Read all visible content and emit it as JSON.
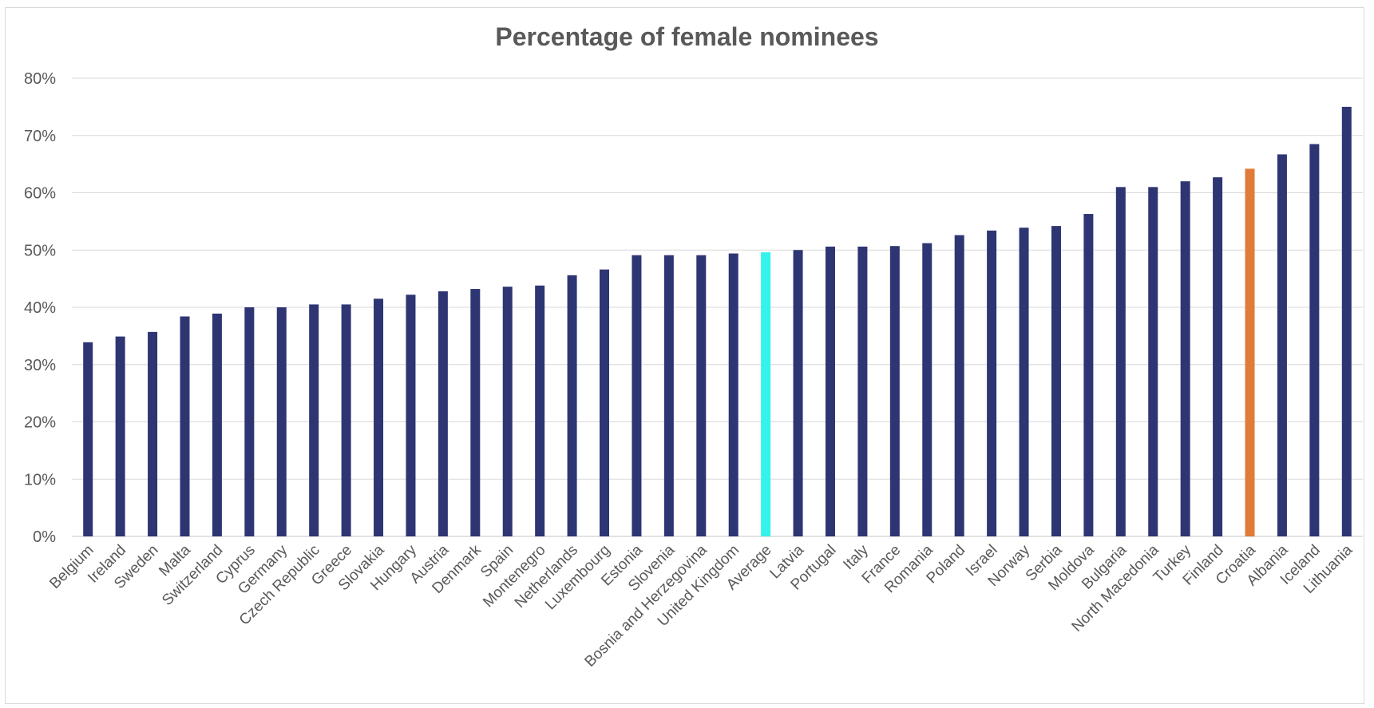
{
  "chart_data": {
    "type": "bar",
    "title": "Percentage of female nominees",
    "xlabel": "",
    "ylabel": "",
    "ylim": [
      0,
      80
    ],
    "yticks": [
      "0%",
      "10%",
      "20%",
      "30%",
      "40%",
      "50%",
      "60%",
      "70%",
      "80%"
    ],
    "grid": true,
    "legend": "none",
    "categories": [
      "Belgium",
      "Ireland",
      "Sweden",
      "Malta",
      "Switzerland",
      "Cyprus",
      "Germany",
      "Czech Republic",
      "Greece",
      "Slovakia",
      "Hungary",
      "Austria",
      "Denmark",
      "Spain",
      "Montenegro",
      "Netherlands",
      "Luxembourg",
      "Estonia",
      "Slovenia",
      "Bosnia and Herzegovina",
      "United Kingdom",
      "Average",
      "Latvia",
      "Portugal",
      "Italy",
      "France",
      "Romania",
      "Poland",
      "Israel",
      "Norway",
      "Serbia",
      "Moldova",
      "Bulgaria",
      "North Macedonia",
      "Turkey",
      "Finland",
      "Croatia",
      "Albania",
      "Iceland",
      "Lithuania"
    ],
    "values": [
      33.9,
      34.9,
      35.7,
      38.4,
      38.9,
      40.0,
      40.0,
      40.5,
      40.5,
      41.5,
      42.2,
      42.8,
      43.2,
      43.6,
      43.8,
      45.6,
      46.6,
      49.1,
      49.1,
      49.1,
      49.4,
      49.6,
      50.0,
      50.6,
      50.6,
      50.7,
      51.2,
      52.6,
      53.4,
      53.9,
      54.2,
      56.3,
      61.0,
      61.0,
      62.0,
      62.7,
      64.2,
      66.7,
      68.5,
      75.0
    ],
    "colors": {
      "default": "#2e3573",
      "highlight_average": "#33f3ec",
      "highlight_croatia": "#e07b39",
      "grid": "#d9d9d9",
      "text": "#595959"
    },
    "highlights": {
      "Average": "highlight_average",
      "Croatia": "highlight_croatia"
    }
  }
}
